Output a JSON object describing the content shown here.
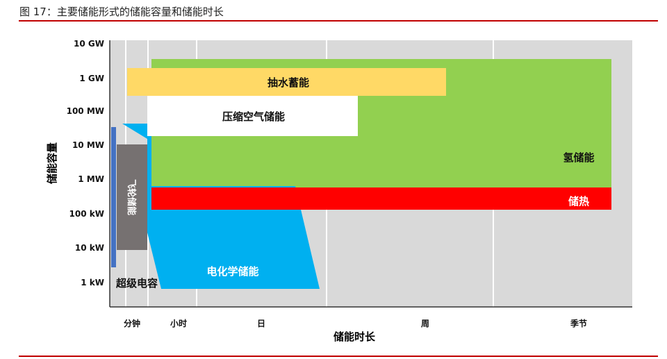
{
  "title": "图 17：主要储能形式的储能容量和储能时长",
  "chart_data": {
    "type": "diagram",
    "ylabel": "储能容量",
    "xlabel": "储能时长",
    "y_ticks": [
      "10 GW",
      "1 GW",
      "100 MW",
      "10 MW",
      "1 MW",
      "100 kW",
      "10 kW",
      "1 kW"
    ],
    "x_ticks": [
      "分钟",
      "小时",
      "日",
      "周",
      "季节"
    ],
    "regions": [
      {
        "name": "超级电容",
        "color": "#4472c4"
      },
      {
        "name": "飞轮储能",
        "color": "#767171"
      },
      {
        "name": "电化学储能",
        "color": "#00b0f0"
      },
      {
        "name": "氢储能",
        "color": "#92d050"
      },
      {
        "name": "储热",
        "color": "#ff0000"
      },
      {
        "name": "抽水蓄能",
        "color": "#ffd966"
      },
      {
        "name": "压缩空气储能",
        "color": "#ffffff"
      }
    ]
  }
}
